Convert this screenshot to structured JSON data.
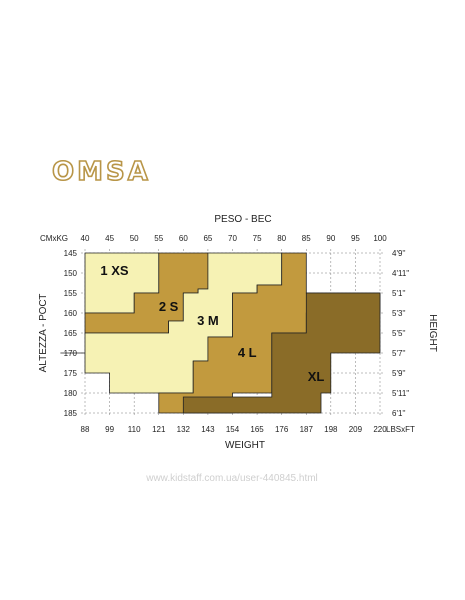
{
  "brand": {
    "logo_text": "OMSA",
    "logo_color": "#b89547"
  },
  "watermark": "www.kidstaff.com.ua/user-440845.html",
  "chart_data": {
    "type": "heatmap",
    "top_axis_title": "PESO - ВЕС",
    "bottom_axis_title": "WEIGHT",
    "left_axis_title": "ALTEZZA - РОСТ",
    "right_axis_title": "HEIGHT",
    "top_unit_label": "CMxKG",
    "bottom_unit_label": "LBSxFT",
    "kg_ticks": [
      40,
      45,
      50,
      55,
      60,
      65,
      70,
      75,
      80,
      85,
      90,
      95,
      100
    ],
    "lbs_ticks": [
      "88",
      "99",
      "110",
      "121",
      "132",
      "143",
      "154",
      "165",
      "176",
      "187",
      "198",
      "209",
      "220"
    ],
    "cm_ticks": [
      145,
      150,
      155,
      160,
      165,
      170,
      175,
      180,
      185
    ],
    "ft_ticks": [
      "4'9''",
      "4'11''",
      "5'1''",
      "5'3''",
      "5'5''",
      "5'7''",
      "5'9''",
      "5'11''",
      "6'1''"
    ],
    "x_range_kg": [
      40,
      100
    ],
    "y_range_cm": [
      145,
      185
    ],
    "grid": true,
    "sizes": [
      {
        "label": "1 XS",
        "color": "#f6f2b4",
        "region": [
          [
            40,
            145
          ],
          [
            55,
            145
          ],
          [
            55,
            155
          ],
          [
            50,
            155
          ],
          [
            50,
            160
          ],
          [
            40,
            160
          ]
        ],
        "label_at": [
          46,
          149.5
        ]
      },
      {
        "label": "2 S",
        "color": "#c29a3e",
        "region": [
          [
            55,
            145
          ],
          [
            65,
            145
          ],
          [
            65,
            154
          ],
          [
            63,
            154
          ],
          [
            63,
            155
          ],
          [
            60,
            155
          ],
          [
            60,
            162
          ],
          [
            57,
            162
          ],
          [
            57,
            165
          ],
          [
            40,
            165
          ],
          [
            40,
            160
          ],
          [
            50,
            160
          ],
          [
            50,
            155
          ],
          [
            55,
            155
          ]
        ],
        "label_at": [
          57,
          158.5
        ]
      },
      {
        "label": "3 M",
        "color": "#f6f2b4",
        "region": [
          [
            65,
            145
          ],
          [
            80,
            145
          ],
          [
            80,
            153
          ],
          [
            75,
            153
          ],
          [
            75,
            155
          ],
          [
            70,
            155
          ],
          [
            70,
            166
          ],
          [
            65,
            166
          ],
          [
            65,
            172
          ],
          [
            62,
            172
          ],
          [
            62,
            180
          ],
          [
            45,
            180
          ],
          [
            45,
            175
          ],
          [
            40,
            175
          ],
          [
            40,
            170
          ],
          [
            35,
            170
          ],
          [
            40,
            170
          ],
          [
            40,
            165
          ],
          [
            57,
            165
          ],
          [
            57,
            162
          ],
          [
            60,
            162
          ],
          [
            60,
            155
          ],
          [
            63,
            155
          ],
          [
            63,
            154
          ],
          [
            65,
            154
          ]
        ],
        "label_at": [
          65,
          162
        ]
      },
      {
        "label": "4 L",
        "color": "#c29a3e",
        "region": [
          [
            80,
            145
          ],
          [
            85,
            145
          ],
          [
            85,
            155
          ],
          [
            100,
            155
          ],
          [
            100,
            160
          ],
          [
            85,
            160
          ],
          [
            85,
            165
          ],
          [
            78,
            165
          ],
          [
            78,
            180
          ],
          [
            70,
            180
          ],
          [
            70,
            185
          ],
          [
            55,
            185
          ],
          [
            55,
            180
          ],
          [
            62,
            180
          ],
          [
            62,
            172
          ],
          [
            65,
            172
          ],
          [
            65,
            166
          ],
          [
            70,
            166
          ],
          [
            70,
            155
          ],
          [
            75,
            155
          ],
          [
            75,
            153
          ],
          [
            80,
            153
          ]
        ],
        "label_at": [
          73,
          170
        ]
      },
      {
        "label": "XL",
        "color": "#8a6c28",
        "region": [
          [
            85,
            155
          ],
          [
            100,
            155
          ],
          [
            100,
            170
          ],
          [
            90,
            170
          ],
          [
            90,
            180
          ],
          [
            88,
            180
          ],
          [
            88,
            185
          ],
          [
            60,
            185
          ],
          [
            60,
            181
          ],
          [
            78,
            181
          ],
          [
            78,
            165
          ],
          [
            85,
            165
          ]
        ],
        "label_at": [
          87,
          176
        ]
      }
    ]
  }
}
